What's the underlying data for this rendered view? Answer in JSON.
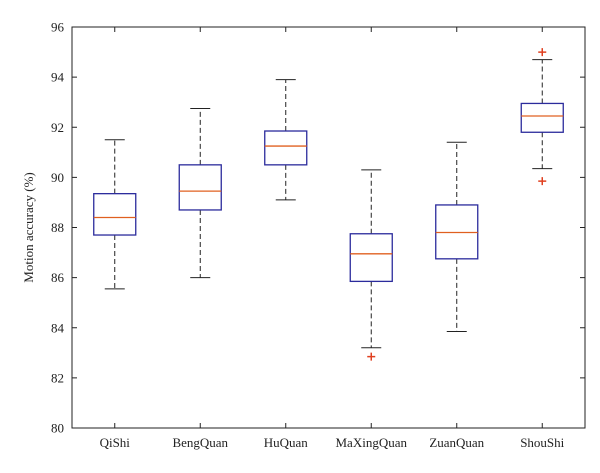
{
  "chart_data": {
    "type": "box",
    "title": "",
    "xlabel": "",
    "ylabel": "Motion accuracy (%)",
    "ylim": [
      80,
      96
    ],
    "yticks": [
      80,
      82,
      84,
      86,
      88,
      90,
      92,
      94,
      96
    ],
    "grid": false,
    "legend": "none",
    "categories": [
      "QiShi",
      "BengQuan",
      "HuQuan",
      "MaXingQuan",
      "ZuanQuan",
      "ShouShi"
    ],
    "boxes": [
      {
        "category": "QiShi",
        "whisker_low": 85.55,
        "q1": 87.7,
        "median": 88.4,
        "q3": 89.35,
        "whisker_high": 91.5,
        "outliers": []
      },
      {
        "category": "BengQuan",
        "whisker_low": 86.0,
        "q1": 88.7,
        "median": 89.45,
        "q3": 90.5,
        "whisker_high": 92.75,
        "outliers": []
      },
      {
        "category": "HuQuan",
        "whisker_low": 89.1,
        "q1": 90.5,
        "median": 91.25,
        "q3": 91.85,
        "whisker_high": 93.9,
        "outliers": []
      },
      {
        "category": "MaXingQuan",
        "whisker_low": 83.2,
        "q1": 85.85,
        "median": 86.95,
        "q3": 87.75,
        "whisker_high": 90.3,
        "outliers": [
          82.85
        ]
      },
      {
        "category": "ZuanQuan",
        "whisker_low": 83.85,
        "q1": 86.75,
        "median": 87.8,
        "q3": 88.9,
        "whisker_high": 91.4,
        "outliers": []
      },
      {
        "category": "ShouShi",
        "whisker_low": 90.35,
        "q1": 91.8,
        "median": 92.45,
        "q3": 92.95,
        "whisker_high": 94.7,
        "outliers": [
          95.0,
          89.85
        ]
      }
    ],
    "colors": {
      "box": "#2b2b9c",
      "median": "#e06020",
      "whisker": "#222222",
      "outlier": "#e04020",
      "axis": "#222222"
    }
  }
}
